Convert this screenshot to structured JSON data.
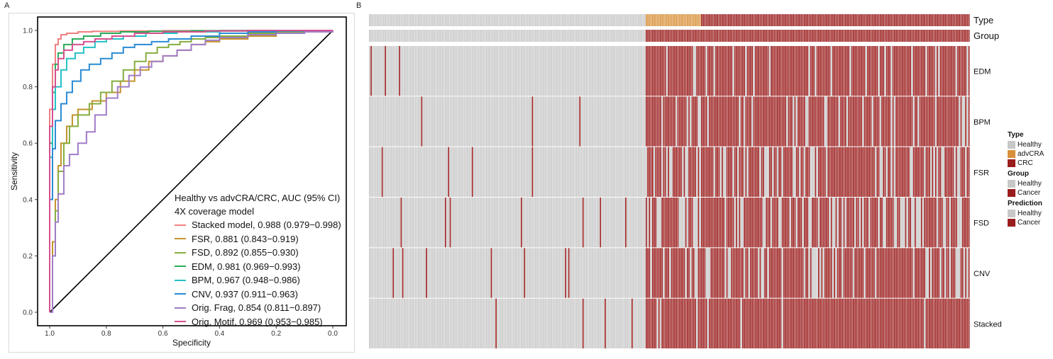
{
  "panels": {
    "a_label": "A",
    "b_label": "B"
  },
  "chart_data": [
    {
      "type": "line",
      "title": "",
      "xlabel": "Specificity",
      "ylabel": "Sensitivity",
      "xlim": [
        1.0,
        0.0
      ],
      "ylim": [
        0.0,
        1.0
      ],
      "x_ticks": [
        "1.0",
        "0.8",
        "0.6",
        "0.4",
        "0.2",
        "0.0"
      ],
      "y_ticks": [
        "0.0",
        "0.2",
        "0.4",
        "0.6",
        "0.8",
        "1.0"
      ],
      "legend_title_1": "Healthy vs advCRA/CRC, AUC (95% CI)",
      "legend_title_2": "4X coverage model",
      "legend_position": "bottom-right",
      "diagonal": {
        "x": [
          1.0,
          0.0
        ],
        "y": [
          0.0,
          1.0
        ],
        "color": "#000000"
      },
      "series": [
        {
          "name": "Stacked model, 0.988 (0.979−0.998)",
          "color": "#f07f7f",
          "x": [
            1.0,
            1.0,
            0.99,
            0.98,
            0.97,
            0.96,
            0.94,
            0.9,
            0.85,
            0.75,
            0.6,
            0.4,
            0.2,
            0.0
          ],
          "y": [
            0.0,
            0.72,
            0.88,
            0.95,
            0.97,
            0.985,
            0.99,
            0.995,
            0.997,
            0.998,
            0.999,
            1.0,
            1.0,
            1.0
          ]
        },
        {
          "name": "FSR, 0.881 (0.843−0.919)",
          "color": "#c3932c",
          "x": [
            1.0,
            0.99,
            0.98,
            0.97,
            0.96,
            0.94,
            0.92,
            0.9,
            0.85,
            0.8,
            0.75,
            0.7,
            0.65,
            0.6,
            0.55,
            0.5,
            0.45,
            0.4,
            0.3,
            0.2,
            0.1,
            0.0
          ],
          "y": [
            0.0,
            0.25,
            0.4,
            0.52,
            0.6,
            0.66,
            0.7,
            0.72,
            0.75,
            0.78,
            0.82,
            0.86,
            0.89,
            0.91,
            0.93,
            0.95,
            0.96,
            0.97,
            0.98,
            0.99,
            0.995,
            1.0
          ]
        },
        {
          "name": "FSD, 0.892 (0.855−0.930)",
          "color": "#85ad3e",
          "x": [
            1.0,
            0.99,
            0.98,
            0.97,
            0.95,
            0.93,
            0.9,
            0.86,
            0.82,
            0.78,
            0.74,
            0.7,
            0.66,
            0.62,
            0.58,
            0.54,
            0.5,
            0.45,
            0.4,
            0.3,
            0.2,
            0.1,
            0.0
          ],
          "y": [
            0.0,
            0.2,
            0.36,
            0.5,
            0.6,
            0.66,
            0.7,
            0.74,
            0.78,
            0.82,
            0.86,
            0.89,
            0.92,
            0.94,
            0.95,
            0.96,
            0.97,
            0.975,
            0.98,
            0.99,
            0.995,
            0.998,
            1.0
          ]
        },
        {
          "name": "EDM, 0.981 (0.969−0.993)",
          "color": "#2aab5a",
          "x": [
            1.0,
            1.0,
            0.99,
            0.98,
            0.97,
            0.95,
            0.92,
            0.88,
            0.82,
            0.75,
            0.65,
            0.5,
            0.3,
            0.0
          ],
          "y": [
            0.0,
            0.6,
            0.78,
            0.88,
            0.92,
            0.95,
            0.97,
            0.98,
            0.99,
            0.995,
            0.997,
            0.999,
            1.0,
            1.0
          ]
        },
        {
          "name": "BPM, 0.967 (0.948−0.986)",
          "color": "#23c0c4",
          "x": [
            1.0,
            1.0,
            0.99,
            0.98,
            0.96,
            0.94,
            0.91,
            0.88,
            0.84,
            0.8,
            0.74,
            0.66,
            0.55,
            0.4,
            0.2,
            0.0
          ],
          "y": [
            0.0,
            0.55,
            0.72,
            0.8,
            0.86,
            0.9,
            0.92,
            0.94,
            0.96,
            0.97,
            0.98,
            0.99,
            0.995,
            0.998,
            1.0,
            1.0
          ]
        },
        {
          "name": "CNV, 0.937 (0.911−0.963)",
          "color": "#2a8bd3",
          "x": [
            1.0,
            1.0,
            0.99,
            0.98,
            0.96,
            0.94,
            0.92,
            0.89,
            0.86,
            0.82,
            0.78,
            0.74,
            0.7,
            0.64,
            0.58,
            0.5,
            0.4,
            0.3,
            0.2,
            0.1,
            0.0
          ],
          "y": [
            0.0,
            0.4,
            0.58,
            0.68,
            0.74,
            0.78,
            0.82,
            0.86,
            0.88,
            0.9,
            0.92,
            0.94,
            0.95,
            0.96,
            0.97,
            0.98,
            0.99,
            0.995,
            0.998,
            0.999,
            1.0
          ]
        },
        {
          "name": "Orig. Frag, 0.854 (0.811−0.897)",
          "color": "#a07cc8",
          "x": [
            1.0,
            0.99,
            0.98,
            0.97,
            0.95,
            0.93,
            0.9,
            0.87,
            0.84,
            0.8,
            0.76,
            0.72,
            0.68,
            0.64,
            0.6,
            0.55,
            0.5,
            0.45,
            0.4,
            0.3,
            0.2,
            0.1,
            0.0
          ],
          "y": [
            0.0,
            0.2,
            0.32,
            0.42,
            0.52,
            0.56,
            0.6,
            0.64,
            0.7,
            0.76,
            0.8,
            0.84,
            0.87,
            0.89,
            0.91,
            0.93,
            0.95,
            0.965,
            0.975,
            0.985,
            0.99,
            0.995,
            1.0
          ]
        },
        {
          "name": "Orig. Motif, 0.969 (0.953−0.985)",
          "color": "#d6508e",
          "x": [
            1.0,
            1.0,
            0.99,
            0.98,
            0.97,
            0.95,
            0.92,
            0.88,
            0.84,
            0.78,
            0.7,
            0.6,
            0.45,
            0.3,
            0.15,
            0.0
          ],
          "y": [
            0.0,
            0.66,
            0.8,
            0.86,
            0.9,
            0.93,
            0.95,
            0.96,
            0.97,
            0.98,
            0.99,
            0.995,
            0.998,
            1.0,
            1.0,
            1.0
          ]
        }
      ]
    },
    {
      "type": "heatmap",
      "n_columns": 380,
      "healthy_count": 175,
      "advcra_count": 35,
      "crc_count": 170,
      "annotation_rows": [
        "Type",
        "Group"
      ],
      "prediction_rows": [
        "EDM",
        "BPM",
        "FSR",
        "FSD",
        "CNV",
        "Stacked"
      ],
      "healthy_positive_rate": [
        0.02,
        0.02,
        0.03,
        0.03,
        0.05,
        0.02
      ],
      "cancer_positive_rate": [
        0.9,
        0.84,
        0.72,
        0.7,
        0.78,
        0.96
      ],
      "colors": {
        "healthy": "#c8c8c8",
        "advcra": "#d8913a",
        "cancer": "#9b1c1c"
      },
      "legend": {
        "type_title": "Type",
        "type_items": [
          "Healthy",
          "advCRA",
          "CRC"
        ],
        "group_title": "Group",
        "group_items": [
          "Healthy",
          "Cancer"
        ],
        "prediction_title": "Prediction",
        "prediction_items": [
          "Healthy",
          "Cancer"
        ]
      }
    }
  ]
}
